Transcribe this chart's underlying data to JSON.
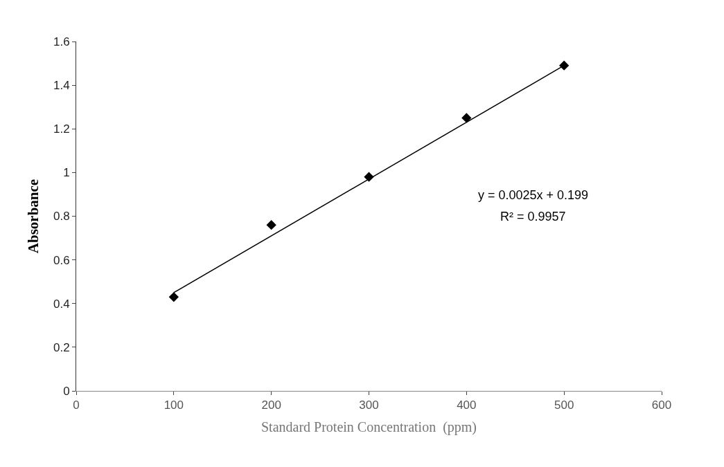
{
  "chart_data": {
    "type": "scatter",
    "xlabel": "Standard Protein Concentration  (ppm)",
    "ylabel": "Absorbance",
    "x": [
      100,
      200,
      300,
      400,
      500
    ],
    "series": [
      {
        "color": "#000000",
        "values": [
          0.43,
          0.76,
          0.98,
          1.25,
          1.49
        ],
        "marker": "diamond"
      },
      {
        "type": "line",
        "color": "#000000",
        "x": [
          100,
          500
        ],
        "values": [
          0.45,
          1.49
        ],
        "marker": "none",
        "line_style": "solid"
      }
    ],
    "annotations": [
      "y = 0.0025x + 0.199",
      "R² = 0.9957"
    ],
    "xlim": [
      0,
      600
    ],
    "xticks": [
      0,
      100,
      200,
      300,
      400,
      500,
      600
    ],
    "ylim": [
      0,
      1.6
    ],
    "yticks": [
      0,
      0.2,
      0.4,
      0.6,
      0.8,
      1,
      1.2,
      1.4,
      1.6
    ]
  }
}
